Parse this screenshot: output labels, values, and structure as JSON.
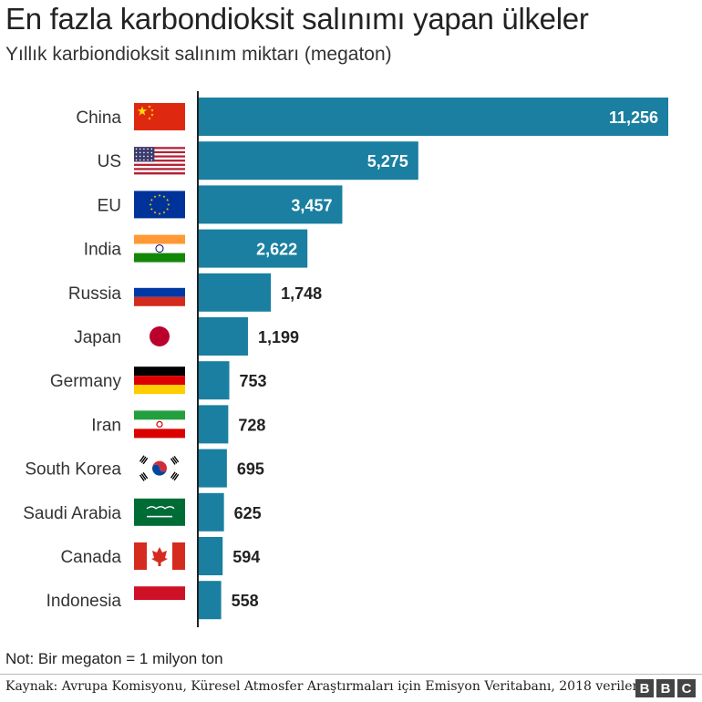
{
  "chart_data": {
    "type": "bar",
    "orientation": "horizontal",
    "title": "En fazla karbondioksit salınımı yapan ülkeler",
    "subtitle": "Yıllık karbiondioksit salınım miktarı (megaton)",
    "categories": [
      "China",
      "US",
      "EU",
      "India",
      "Russia",
      "Japan",
      "Germany",
      "Iran",
      "South Korea",
      "Saudi Arabia",
      "Canada",
      "Indonesia"
    ],
    "values": [
      11256,
      5275,
      3457,
      2622,
      1748,
      1199,
      753,
      728,
      695,
      625,
      594,
      558
    ],
    "value_labels": [
      "11,256",
      "5,275",
      "3,457",
      "2,622",
      "1,748",
      "1,199",
      "753",
      "728",
      "695",
      "625",
      "594",
      "558"
    ],
    "flags": [
      "china-flag-icon",
      "us-flag-icon",
      "eu-flag-icon",
      "india-flag-icon",
      "russia-flag-icon",
      "japan-flag-icon",
      "germany-flag-icon",
      "iran-flag-icon",
      "south-korea-flag-icon",
      "saudi-arabia-flag-icon",
      "canada-flag-icon",
      "indonesia-flag-icon"
    ],
    "bar_color": "#1a7fa0",
    "xlim": [
      0,
      11256
    ],
    "grid": false
  },
  "note": "Not: Bir megaton = 1 milyon ton",
  "source": "Kaynak: Avrupa Komisyonu, Küresel Atmosfer Araştırmaları için Emisyon Veritabanı, 2018 verileri",
  "logo": [
    "B",
    "B",
    "C"
  ]
}
